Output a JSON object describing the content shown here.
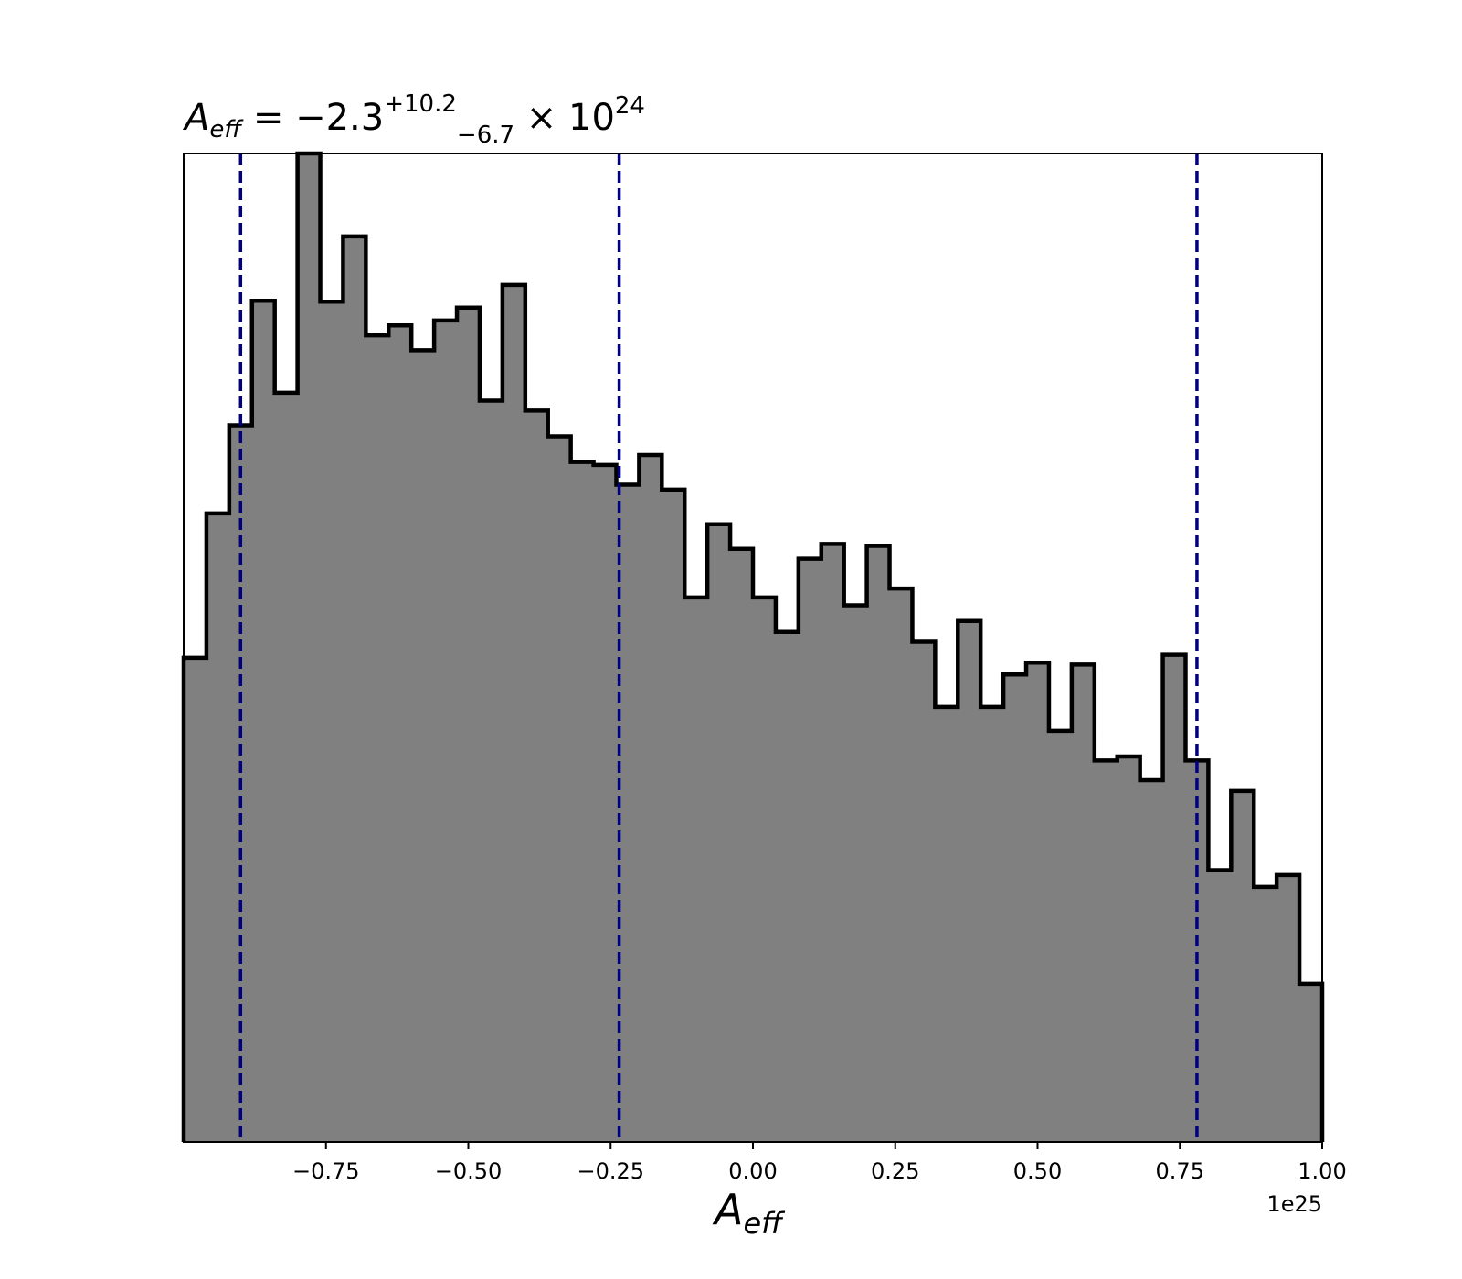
{
  "chart_data": {
    "type": "histogram",
    "title_parts": {
      "symbol": "A",
      "symbol_sub": "eff",
      "equals": " = −2.3",
      "sup": "+10.2",
      "sub": "−6.7",
      "times": " × 10",
      "exp": "24"
    },
    "xlabel": {
      "symbol": "A",
      "sub": "eff"
    },
    "offset_label": "1e25",
    "xlim": [
      -1.0,
      1.0
    ],
    "ylim": [
      0,
      100
    ],
    "xticks": [
      -0.75,
      -0.5,
      -0.25,
      0.0,
      0.25,
      0.5,
      0.75,
      1.0
    ],
    "xtick_labels": [
      "−0.75",
      "−0.50",
      "−0.25",
      "0.00",
      "0.25",
      "0.50",
      "0.75",
      "1.00"
    ],
    "yticks_visible": false,
    "grid": false,
    "bin_edges_start": -1.0,
    "bin_width": 0.04,
    "counts": [
      49.0,
      63.6,
      72.5,
      85.1,
      75.8,
      100.0,
      85.0,
      91.6,
      81.6,
      82.6,
      80.1,
      83.1,
      84.4,
      75.0,
      86.7,
      74.0,
      71.4,
      68.8,
      68.5,
      66.5,
      69.5,
      66.0,
      55.1,
      62.5,
      60.0,
      55.1,
      51.6,
      59.0,
      60.5,
      54.3,
      60.3,
      56.0,
      50.6,
      44.0,
      52.7,
      44.0,
      47.3,
      48.5,
      41.6,
      48.3,
      38.6,
      39.0,
      36.6,
      49.3,
      38.6,
      27.5,
      35.5,
      25.8,
      27.0,
      16.0
    ],
    "fill_color": "#808080",
    "edge_color": "#000000",
    "quantile_lines": {
      "values": [
        -0.9,
        -0.235,
        0.78
      ],
      "color": "#00007f",
      "style": "dashed"
    }
  }
}
